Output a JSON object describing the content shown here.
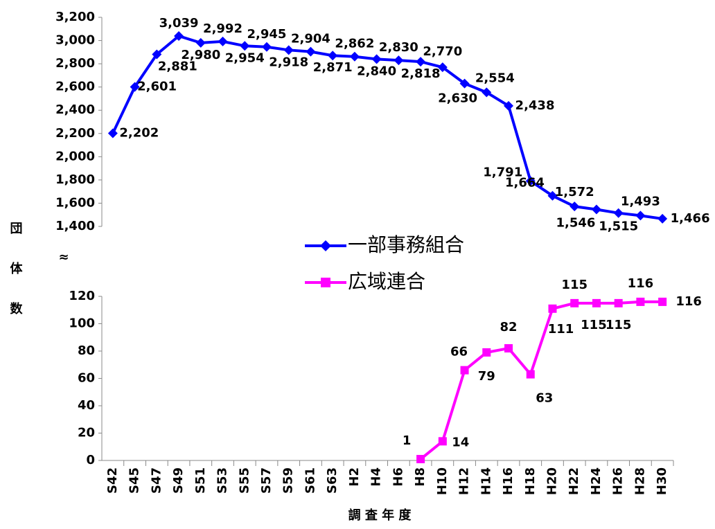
{
  "chart_data": [
    {
      "type": "line",
      "ylabel": "団体数",
      "axis_break": "≈",
      "series": [
        {
          "name": "一部事務組合",
          "color": "#0000ff",
          "marker": "diamond",
          "values": [
            2202,
            2601,
            2881,
            3039,
            2980,
            2992,
            2954,
            2945,
            2918,
            2904,
            2871,
            2862,
            2840,
            2830,
            2818,
            2770,
            2630,
            2554,
            2438,
            1791,
            1664,
            1572,
            1546,
            1515,
            1493,
            1466
          ],
          "value_labels": [
            "2,202",
            "2,601",
            "2,881",
            "3,039",
            "2,980",
            "2,992",
            "2,954",
            "2,945",
            "2,918",
            "2,904",
            "2,871",
            "2,862",
            "2,840",
            "2,830",
            "2,818",
            "2,770",
            "2,630",
            "2,554",
            "2,438",
            "1,791",
            "1,664",
            "1,572",
            "1,546",
            "1,515",
            "1,493",
            "1,466"
          ]
        }
      ],
      "ylim": [
        1400,
        3200
      ],
      "yticks": [
        {
          "value": 1400,
          "label": "1,400"
        },
        {
          "value": 1600,
          "label": "1,600"
        },
        {
          "value": 1800,
          "label": "1,800"
        },
        {
          "value": 2000,
          "label": "2,000"
        },
        {
          "value": 2200,
          "label": "2,200"
        },
        {
          "value": 2400,
          "label": "2,400"
        },
        {
          "value": 2600,
          "label": "2,600"
        },
        {
          "value": 2800,
          "label": "2,800"
        },
        {
          "value": 3000,
          "label": "3,000"
        },
        {
          "value": 3200,
          "label": "3,200"
        }
      ]
    },
    {
      "type": "line",
      "xlabel": "調 査 年 度",
      "categories": [
        "S42",
        "S45",
        "S47",
        "S49",
        "S51",
        "S53",
        "S55",
        "S57",
        "S59",
        "S61",
        "S63",
        "H2",
        "H4",
        "H6",
        "H8",
        "H10",
        "H12",
        "H14",
        "H16",
        "H18",
        "H20",
        "H22",
        "H24",
        "H26",
        "H28",
        "H30"
      ],
      "series": [
        {
          "name": "広域連合",
          "color": "#ff00ff",
          "marker": "square",
          "values": [
            null,
            null,
            null,
            null,
            null,
            null,
            null,
            null,
            null,
            null,
            null,
            null,
            null,
            null,
            1,
            14,
            66,
            79,
            82,
            63,
            111,
            115,
            115,
            115,
            116,
            116
          ]
        }
      ],
      "ylim": [
        0,
        120
      ],
      "yticks": [
        0,
        20,
        40,
        60,
        80,
        100,
        120
      ]
    }
  ]
}
